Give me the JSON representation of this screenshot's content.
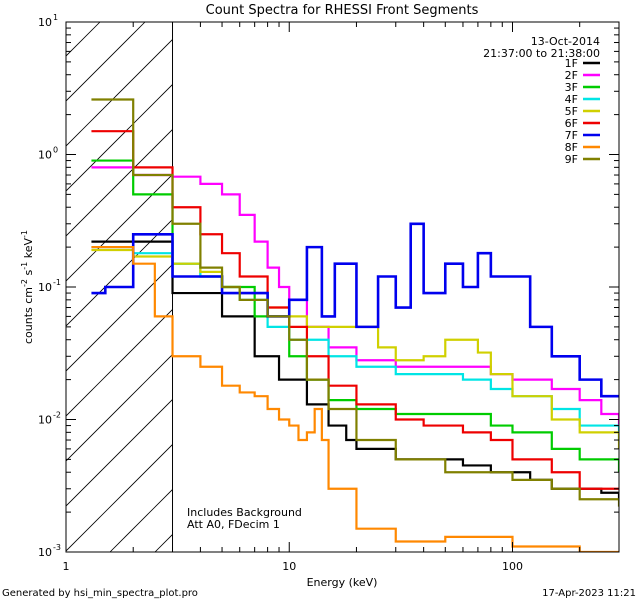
{
  "chart_data": {
    "type": "line",
    "title": "Count Spectra for RHESSI Front Segments",
    "xlabel": "Energy (keV)",
    "ylabel_parts": [
      "counts cm",
      "-2",
      " s",
      "-1",
      " keV",
      "-1"
    ],
    "xscale": "log",
    "yscale": "log",
    "xlim": [
      1,
      300
    ],
    "ylim": [
      0.001,
      10
    ],
    "x_ticks": [
      {
        "value": 1,
        "label": "1"
      },
      {
        "value": 10,
        "label": "10"
      },
      {
        "value": 100,
        "label": "100"
      }
    ],
    "y_ticks": [
      {
        "value": 0.001,
        "base": "10",
        "exp": "-3"
      },
      {
        "value": 0.01,
        "base": "10",
        "exp": "-2"
      },
      {
        "value": 0.1,
        "base": "10",
        "exp": "-1"
      },
      {
        "value": 1,
        "base": "10",
        "exp": "0"
      },
      {
        "value": 10,
        "base": "10",
        "exp": "1"
      }
    ],
    "date": "13-Oct-2014",
    "time_range": "21:37:00 to 21:38:00",
    "shaded_region_max_energy": 3,
    "annotations": [
      "Includes Background",
      "Att A0, FDecim 1"
    ],
    "footer_left": "Generated by hsi_min_spectra_plot.pro",
    "footer_right": "17-Apr-2023 11:21",
    "series": [
      {
        "name": "1F",
        "color": "#000000",
        "x": [
          1.3,
          3,
          5,
          7,
          9,
          12,
          15,
          18,
          20,
          30,
          40,
          60,
          80,
          100,
          120,
          150,
          200,
          250,
          300
        ],
        "y": [
          0.22,
          0.09,
          0.06,
          0.03,
          0.02,
          0.013,
          0.009,
          0.007,
          0.006,
          0.005,
          0.005,
          0.0045,
          0.004,
          0.004,
          0.0035,
          0.003,
          0.003,
          0.0028,
          0.0025
        ]
      },
      {
        "name": "2F",
        "color": "#ff00ff",
        "x": [
          1.3,
          2,
          3,
          4,
          5,
          6,
          7,
          8,
          9,
          10,
          12,
          15,
          20,
          30,
          40,
          60,
          80,
          100,
          150,
          200,
          250,
          300
        ],
        "y": [
          0.8,
          0.7,
          0.68,
          0.6,
          0.5,
          0.35,
          0.22,
          0.14,
          0.1,
          0.08,
          0.05,
          0.035,
          0.028,
          0.025,
          0.025,
          0.025,
          0.022,
          0.02,
          0.017,
          0.014,
          0.011,
          0.009
        ]
      },
      {
        "name": "3F",
        "color": "#00cc00",
        "x": [
          1.3,
          2,
          3,
          4,
          5,
          7,
          10,
          12,
          15,
          20,
          30,
          50,
          80,
          100,
          150,
          200,
          300
        ],
        "y": [
          0.9,
          0.5,
          0.15,
          0.12,
          0.1,
          0.06,
          0.03,
          0.02,
          0.014,
          0.012,
          0.011,
          0.011,
          0.009,
          0.008,
          0.006,
          0.005,
          0.004
        ]
      },
      {
        "name": "4F",
        "color": "#00e5e5",
        "x": [
          1.3,
          2,
          3,
          4,
          5,
          6,
          8,
          10,
          15,
          20,
          30,
          40,
          60,
          80,
          100,
          150,
          200,
          300
        ],
        "y": [
          0.2,
          0.18,
          0.15,
          0.12,
          0.1,
          0.08,
          0.05,
          0.04,
          0.03,
          0.025,
          0.022,
          0.022,
          0.02,
          0.017,
          0.015,
          0.012,
          0.009,
          0.007
        ]
      },
      {
        "name": "5F",
        "color": "#d0d000",
        "x": [
          1.3,
          2,
          3,
          4,
          5,
          6,
          8,
          10,
          12,
          15,
          20,
          25,
          30,
          40,
          50,
          60,
          70,
          80,
          100,
          150,
          200,
          300
        ],
        "y": [
          0.19,
          0.17,
          0.15,
          0.13,
          0.1,
          0.09,
          0.07,
          0.06,
          0.05,
          0.05,
          0.05,
          0.035,
          0.028,
          0.03,
          0.04,
          0.04,
          0.032,
          0.022,
          0.015,
          0.01,
          0.008,
          0.006
        ]
      },
      {
        "name": "6F",
        "color": "#ee0000",
        "x": [
          1.3,
          2,
          3,
          4,
          5,
          6,
          8,
          10,
          12,
          15,
          20,
          30,
          40,
          60,
          80,
          100,
          150,
          200,
          300
        ],
        "y": [
          1.5,
          0.8,
          0.4,
          0.25,
          0.18,
          0.12,
          0.07,
          0.05,
          0.03,
          0.018,
          0.013,
          0.01,
          0.009,
          0.008,
          0.007,
          0.005,
          0.004,
          0.003,
          0.003
        ]
      },
      {
        "name": "7F",
        "color": "#0000ee",
        "x": [
          1.3,
          1.5,
          2,
          3,
          5,
          8,
          10,
          12,
          14,
          16,
          20,
          25,
          30,
          35,
          40,
          50,
          60,
          70,
          80,
          100,
          120,
          150,
          200,
          250,
          300
        ],
        "y": [
          0.09,
          0.1,
          0.25,
          0.12,
          0.09,
          0.06,
          0.08,
          0.2,
          0.06,
          0.15,
          0.05,
          0.12,
          0.07,
          0.3,
          0.09,
          0.15,
          0.1,
          0.18,
          0.12,
          0.12,
          0.05,
          0.03,
          0.02,
          0.015,
          0.015
        ]
      },
      {
        "name": "8F",
        "color": "#ff8800",
        "x": [
          1.3,
          2,
          2.5,
          3,
          4,
          5,
          6,
          7,
          8,
          9,
          10,
          11,
          12,
          13,
          14,
          15,
          20,
          30,
          50,
          100,
          200,
          300
        ],
        "y": [
          0.2,
          0.15,
          0.06,
          0.03,
          0.025,
          0.018,
          0.016,
          0.015,
          0.012,
          0.01,
          0.009,
          0.007,
          0.008,
          0.012,
          0.007,
          0.003,
          0.0015,
          0.0012,
          0.0013,
          0.0011,
          0.001,
          0.001
        ]
      },
      {
        "name": "9F",
        "color": "#808000",
        "x": [
          1.3,
          2,
          3,
          4,
          5,
          6,
          8,
          10,
          12,
          15,
          20,
          30,
          50,
          80,
          100,
          150,
          200,
          300
        ],
        "y": [
          2.6,
          0.7,
          0.3,
          0.14,
          0.1,
          0.08,
          0.06,
          0.04,
          0.02,
          0.012,
          0.007,
          0.005,
          0.004,
          0.004,
          0.0035,
          0.003,
          0.0025,
          0.0022
        ]
      }
    ]
  }
}
